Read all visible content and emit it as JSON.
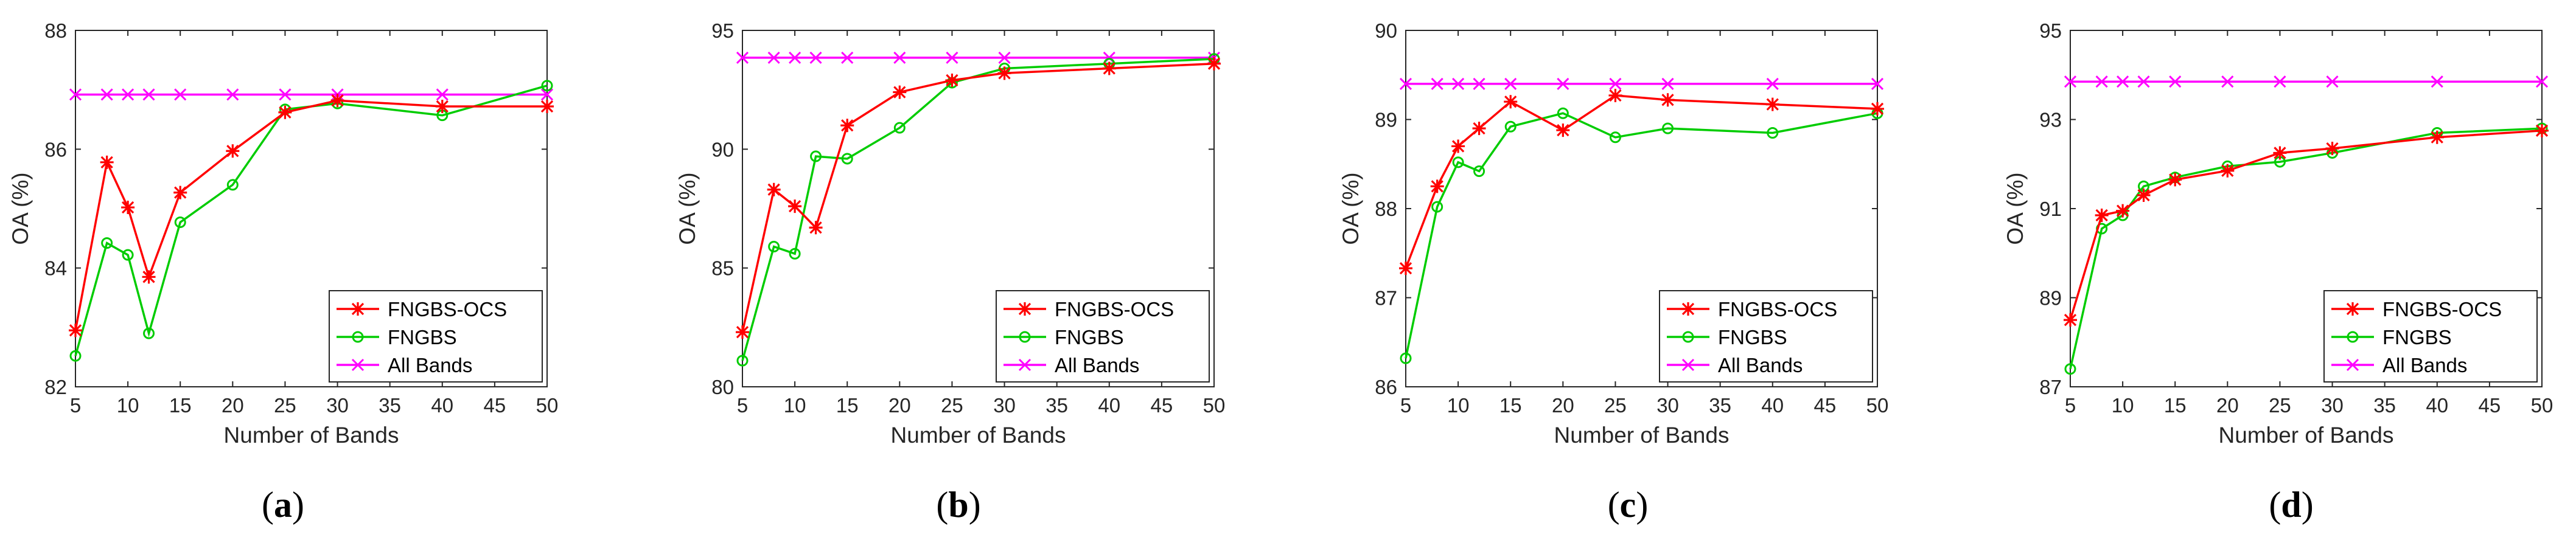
{
  "chart_data": [
    {
      "type": "line",
      "panel_label": "(a)",
      "xlabel": "Number of Bands",
      "ylabel": "OA (%)",
      "xlim": [
        5,
        50
      ],
      "ylim": [
        82,
        88
      ],
      "xticks": [
        "5",
        "10",
        "15",
        "20",
        "25",
        "30",
        "35",
        "40",
        "45",
        "50"
      ],
      "yticks": [
        "82",
        "84",
        "86",
        "88"
      ],
      "legend": "bottom-right",
      "grid": false,
      "x": [
        5,
        8,
        10,
        12,
        15,
        20,
        25,
        30,
        40,
        50
      ],
      "series": [
        {
          "name": "FNGBS-OCS",
          "color": "#ff0000",
          "marker": "star",
          "values": [
            82.95,
            85.78,
            85.02,
            83.85,
            85.27,
            85.97,
            86.62,
            86.82,
            86.72,
            86.72
          ]
        },
        {
          "name": "FNGBS",
          "color": "#00cc00",
          "marker": "circle",
          "values": [
            82.52,
            84.42,
            84.22,
            82.9,
            84.77,
            85.4,
            86.67,
            86.77,
            86.57,
            87.07
          ]
        },
        {
          "name": "All Bands",
          "color": "#ff00ff",
          "marker": "x",
          "values": [
            86.92,
            86.92,
            86.92,
            86.92,
            86.92,
            86.92,
            86.92,
            86.92,
            86.92,
            86.92
          ]
        }
      ]
    },
    {
      "type": "line",
      "panel_label": "(b)",
      "xlabel": "Number of Bands",
      "ylabel": "OA (%)",
      "xlim": [
        5,
        50
      ],
      "ylim": [
        80,
        95
      ],
      "xticks": [
        "5",
        "10",
        "15",
        "20",
        "25",
        "30",
        "35",
        "40",
        "45",
        "50"
      ],
      "yticks": [
        "80",
        "85",
        "90",
        "95"
      ],
      "legend": "bottom-right",
      "grid": false,
      "x": [
        5,
        8,
        10,
        12,
        15,
        20,
        25,
        30,
        40,
        50
      ],
      "series": [
        {
          "name": "FNGBS-OCS",
          "color": "#ff0000",
          "marker": "star",
          "values": [
            82.3,
            88.3,
            87.6,
            86.7,
            91.0,
            92.4,
            92.9,
            93.2,
            93.4,
            93.6
          ]
        },
        {
          "name": "FNGBS",
          "color": "#00cc00",
          "marker": "circle",
          "values": [
            81.1,
            85.9,
            85.6,
            89.7,
            89.6,
            90.9,
            92.8,
            93.4,
            93.6,
            93.8
          ]
        },
        {
          "name": "All Bands",
          "color": "#ff00ff",
          "marker": "x",
          "values": [
            93.85,
            93.85,
            93.85,
            93.85,
            93.85,
            93.85,
            93.85,
            93.85,
            93.85,
            93.85
          ]
        }
      ]
    },
    {
      "type": "line",
      "panel_label": "(c)",
      "xlabel": "Number of Bands",
      "ylabel": "OA (%)",
      "xlim": [
        5,
        50
      ],
      "ylim": [
        86,
        90
      ],
      "xticks": [
        "5",
        "10",
        "15",
        "20",
        "25",
        "30",
        "35",
        "40",
        "45",
        "50"
      ],
      "yticks": [
        "86",
        "87",
        "88",
        "89",
        "90"
      ],
      "legend": "bottom-right",
      "grid": false,
      "x": [
        5,
        8,
        10,
        12,
        15,
        20,
        25,
        30,
        40,
        50
      ],
      "series": [
        {
          "name": "FNGBS-OCS",
          "color": "#ff0000",
          "marker": "star",
          "values": [
            87.33,
            88.25,
            88.7,
            88.9,
            89.2,
            88.88,
            89.27,
            89.22,
            89.17,
            89.12
          ]
        },
        {
          "name": "FNGBS",
          "color": "#00cc00",
          "marker": "circle",
          "values": [
            86.32,
            88.02,
            88.52,
            88.42,
            88.92,
            89.07,
            88.8,
            88.9,
            88.85,
            89.07
          ]
        },
        {
          "name": "All Bands",
          "color": "#ff00ff",
          "marker": "x",
          "values": [
            89.4,
            89.4,
            89.4,
            89.4,
            89.4,
            89.4,
            89.4,
            89.4,
            89.4,
            89.4
          ]
        }
      ]
    },
    {
      "type": "line",
      "panel_label": "(d)",
      "xlabel": "Number of Bands",
      "ylabel": "OA (%)",
      "xlim": [
        5,
        50
      ],
      "ylim": [
        87,
        95
      ],
      "xticks": [
        "5",
        "10",
        "15",
        "20",
        "25",
        "30",
        "35",
        "40",
        "45",
        "50"
      ],
      "yticks": [
        "87",
        "89",
        "91",
        "93",
        "95"
      ],
      "legend": "bottom-right",
      "grid": false,
      "x": [
        5,
        8,
        10,
        12,
        15,
        20,
        25,
        30,
        40,
        50
      ],
      "series": [
        {
          "name": "FNGBS-OCS",
          "color": "#ff0000",
          "marker": "star",
          "values": [
            88.5,
            90.85,
            90.95,
            91.3,
            91.65,
            91.85,
            92.25,
            92.35,
            92.6,
            92.75
          ]
        },
        {
          "name": "FNGBS",
          "color": "#00cc00",
          "marker": "circle",
          "values": [
            87.4,
            90.55,
            90.85,
            91.5,
            91.7,
            91.95,
            92.05,
            92.25,
            92.7,
            92.8
          ]
        },
        {
          "name": "All Bands",
          "color": "#ff00ff",
          "marker": "x",
          "values": [
            93.85,
            93.85,
            93.85,
            93.85,
            93.85,
            93.85,
            93.85,
            93.85,
            93.85,
            93.85
          ]
        }
      ]
    }
  ]
}
